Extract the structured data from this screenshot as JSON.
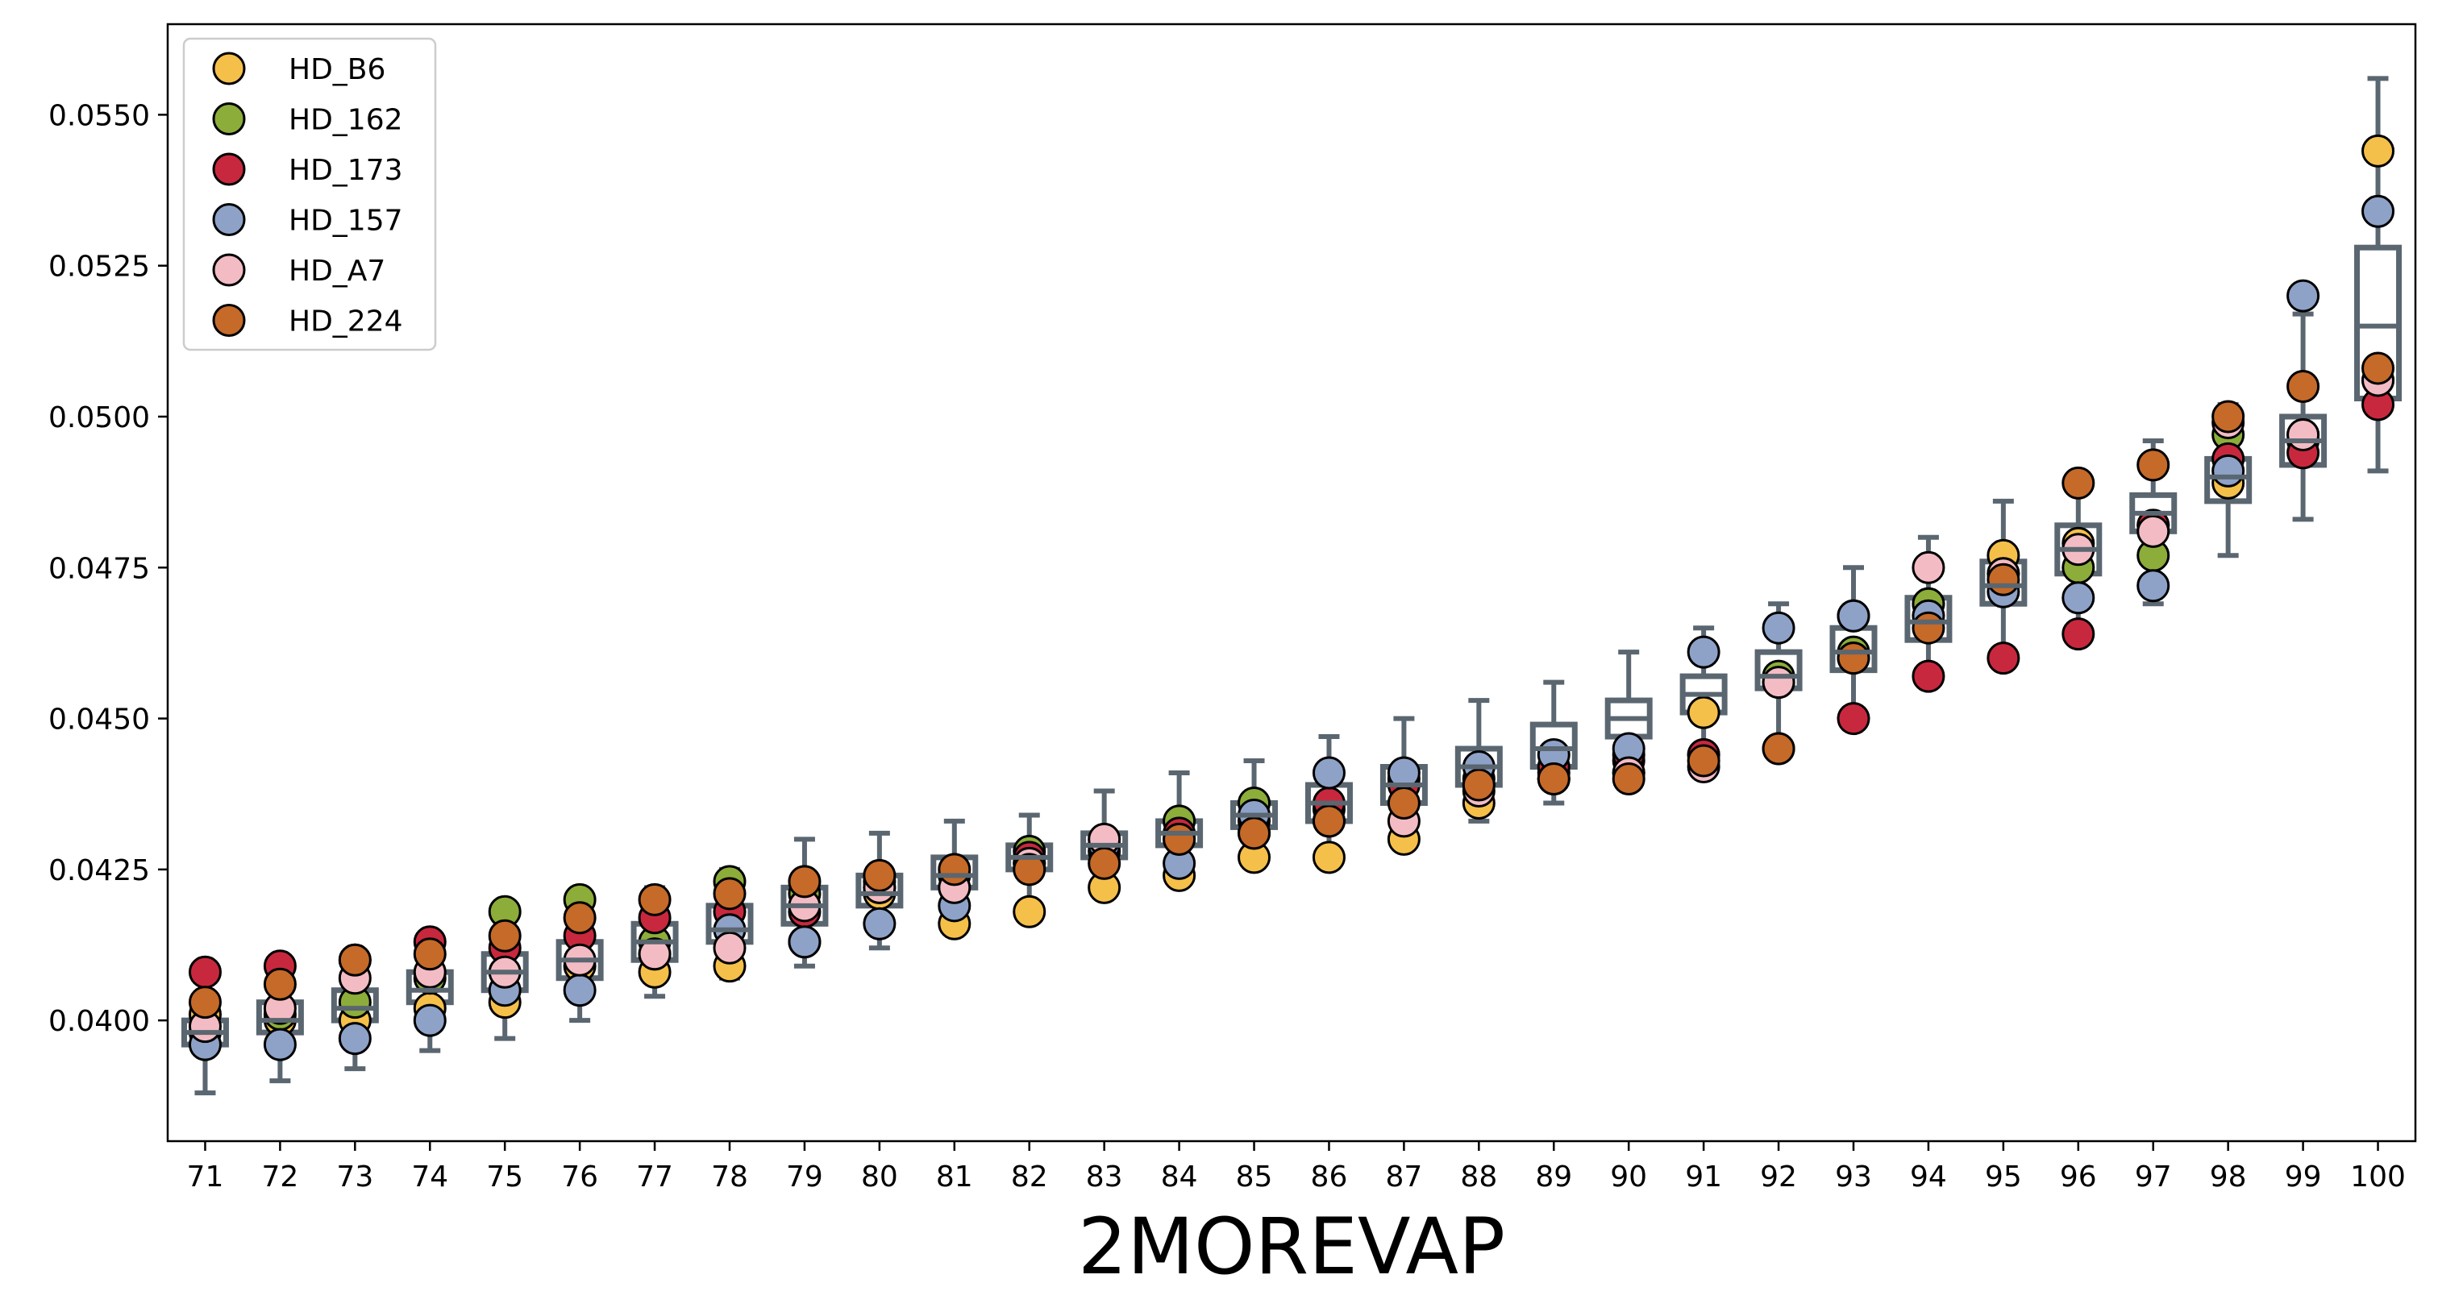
{
  "chart_data": {
    "type": "scatter",
    "overlay": "boxplot",
    "title": "",
    "xlabel": "2MOREVAP",
    "ylabel": "",
    "categories": [
      71,
      72,
      73,
      74,
      75,
      76,
      77,
      78,
      79,
      80,
      81,
      82,
      83,
      84,
      85,
      86,
      87,
      88,
      89,
      90,
      91,
      92,
      93,
      94,
      95,
      96,
      97,
      98,
      99,
      100
    ],
    "ylim": [
      0.038,
      0.0565
    ],
    "yticks": [
      0.04,
      0.0425,
      0.045,
      0.0475,
      0.05,
      0.0525,
      0.055
    ],
    "ytick_labels": [
      "0.0400",
      "0.0425",
      "0.0450",
      "0.0475",
      "0.0500",
      "0.0525",
      "0.0550"
    ],
    "grid": false,
    "legend_position": "top-left",
    "box_color": "#5a6670",
    "series": [
      {
        "name": "HD_B6",
        "color": "#f5c04a",
        "values": [
          0.0401,
          0.04,
          0.04,
          0.0402,
          0.0403,
          0.0409,
          0.0408,
          0.0409,
          0.0413,
          0.0421,
          0.0416,
          0.0418,
          0.0422,
          0.0424,
          0.0427,
          0.0427,
          0.043,
          0.0436,
          0.044,
          0.0441,
          0.0451,
          0.0456,
          0.0467,
          0.0469,
          0.0477,
          0.0479,
          0.0482,
          0.0489,
          0.0496,
          0.0544
        ]
      },
      {
        "name": "HD_162",
        "color": "#8cad3a",
        "values": [
          0.0398,
          0.0401,
          0.0403,
          0.0407,
          0.0418,
          0.042,
          0.0413,
          0.0423,
          0.0421,
          0.0423,
          0.0424,
          0.0428,
          0.0429,
          0.0433,
          0.0436,
          0.0435,
          0.044,
          0.0439,
          0.0441,
          0.0443,
          0.0444,
          0.0457,
          0.0461,
          0.0469,
          0.0474,
          0.0475,
          0.0477,
          0.0497,
          0.0497,
          0.0506
        ]
      },
      {
        "name": "HD_173",
        "color": "#c8283e",
        "values": [
          0.0408,
          0.0409,
          0.041,
          0.0413,
          0.0412,
          0.0414,
          0.0417,
          0.0418,
          0.0418,
          0.0422,
          0.0424,
          0.0427,
          0.0428,
          0.0431,
          0.0433,
          0.0436,
          0.0439,
          0.044,
          0.0442,
          0.0444,
          0.0444,
          0.0445,
          0.045,
          0.0457,
          0.046,
          0.0464,
          0.0482,
          0.0493,
          0.0494,
          0.0502
        ]
      },
      {
        "name": "HD_157",
        "color": "#8ea2c8",
        "values": [
          0.0396,
          0.0396,
          0.0397,
          0.04,
          0.0405,
          0.0405,
          0.0411,
          0.0415,
          0.0413,
          0.0416,
          0.0419,
          0.0426,
          0.0429,
          0.0426,
          0.0434,
          0.0441,
          0.0441,
          0.0442,
          0.0444,
          0.0445,
          0.0461,
          0.0465,
          0.0467,
          0.0467,
          0.0471,
          0.047,
          0.0472,
          0.0491,
          0.052,
          0.0534
        ]
      },
      {
        "name": "HD_A7",
        "color": "#f3bcc4",
        "values": [
          0.0399,
          0.0402,
          0.0407,
          0.0408,
          0.0408,
          0.041,
          0.0411,
          0.0412,
          0.0419,
          0.0422,
          0.0422,
          0.0426,
          0.043,
          0.043,
          0.0431,
          0.0433,
          0.0433,
          0.0438,
          0.044,
          0.0441,
          0.0442,
          0.0456,
          0.046,
          0.0475,
          0.0474,
          0.0478,
          0.0481,
          0.0499,
          0.0497,
          0.0506
        ]
      },
      {
        "name": "HD_224",
        "color": "#c56a29",
        "values": [
          0.0403,
          0.0406,
          0.041,
          0.0411,
          0.0414,
          0.0417,
          0.042,
          0.0421,
          0.0423,
          0.0424,
          0.0425,
          0.0425,
          0.0426,
          0.043,
          0.0431,
          0.0433,
          0.0436,
          0.0439,
          0.044,
          0.044,
          0.0443,
          0.0445,
          0.046,
          0.0465,
          0.0473,
          0.0489,
          0.0492,
          0.05,
          0.0505,
          0.0508
        ]
      }
    ],
    "boxes": [
      {
        "whislo": 0.0388,
        "q1": 0.0396,
        "med": 0.0398,
        "q3": 0.04,
        "whishi": 0.0408
      },
      {
        "whislo": 0.039,
        "q1": 0.0398,
        "med": 0.04,
        "q3": 0.0403,
        "whishi": 0.041
      },
      {
        "whislo": 0.0392,
        "q1": 0.04,
        "med": 0.0402,
        "q3": 0.0405,
        "whishi": 0.0411
      },
      {
        "whislo": 0.0395,
        "q1": 0.0403,
        "med": 0.0405,
        "q3": 0.0408,
        "whishi": 0.0414
      },
      {
        "whislo": 0.0397,
        "q1": 0.0405,
        "med": 0.0408,
        "q3": 0.0411,
        "whishi": 0.0418
      },
      {
        "whislo": 0.04,
        "q1": 0.0407,
        "med": 0.041,
        "q3": 0.0413,
        "whishi": 0.042
      },
      {
        "whislo": 0.0404,
        "q1": 0.041,
        "med": 0.0413,
        "q3": 0.0416,
        "whishi": 0.0422
      },
      {
        "whislo": 0.0407,
        "q1": 0.0413,
        "med": 0.0415,
        "q3": 0.0419,
        "whishi": 0.0425
      },
      {
        "whislo": 0.0409,
        "q1": 0.0416,
        "med": 0.0419,
        "q3": 0.0422,
        "whishi": 0.043
      },
      {
        "whislo": 0.0412,
        "q1": 0.0419,
        "med": 0.0421,
        "q3": 0.0424,
        "whishi": 0.0431
      },
      {
        "whislo": 0.0416,
        "q1": 0.0422,
        "med": 0.0424,
        "q3": 0.0427,
        "whishi": 0.0433
      },
      {
        "whislo": 0.0418,
        "q1": 0.0425,
        "med": 0.0427,
        "q3": 0.0429,
        "whishi": 0.0434
      },
      {
        "whislo": 0.0422,
        "q1": 0.0427,
        "med": 0.0429,
        "q3": 0.0431,
        "whishi": 0.0438
      },
      {
        "whislo": 0.0424,
        "q1": 0.0429,
        "med": 0.0431,
        "q3": 0.0433,
        "whishi": 0.0441
      },
      {
        "whislo": 0.0427,
        "q1": 0.0432,
        "med": 0.0434,
        "q3": 0.0436,
        "whishi": 0.0443
      },
      {
        "whislo": 0.0428,
        "q1": 0.0433,
        "med": 0.0436,
        "q3": 0.0439,
        "whishi": 0.0447
      },
      {
        "whislo": 0.043,
        "q1": 0.0436,
        "med": 0.0439,
        "q3": 0.0442,
        "whishi": 0.045
      },
      {
        "whislo": 0.0433,
        "q1": 0.0439,
        "med": 0.0442,
        "q3": 0.0445,
        "whishi": 0.0453
      },
      {
        "whislo": 0.0436,
        "q1": 0.0442,
        "med": 0.0445,
        "q3": 0.0449,
        "whishi": 0.0456
      },
      {
        "whislo": 0.044,
        "q1": 0.0447,
        "med": 0.045,
        "q3": 0.0453,
        "whishi": 0.0461
      },
      {
        "whislo": 0.0443,
        "q1": 0.0451,
        "med": 0.0454,
        "q3": 0.0457,
        "whishi": 0.0465
      },
      {
        "whislo": 0.0445,
        "q1": 0.0455,
        "med": 0.0457,
        "q3": 0.0461,
        "whishi": 0.0469
      },
      {
        "whislo": 0.045,
        "q1": 0.0458,
        "med": 0.0461,
        "q3": 0.0465,
        "whishi": 0.0475
      },
      {
        "whislo": 0.0457,
        "q1": 0.0463,
        "med": 0.0466,
        "q3": 0.047,
        "whishi": 0.048
      },
      {
        "whislo": 0.046,
        "q1": 0.0469,
        "med": 0.0472,
        "q3": 0.0476,
        "whishi": 0.0486
      },
      {
        "whislo": 0.0464,
        "q1": 0.0474,
        "med": 0.0478,
        "q3": 0.0482,
        "whishi": 0.0489
      },
      {
        "whislo": 0.0469,
        "q1": 0.0481,
        "med": 0.0484,
        "q3": 0.0487,
        "whishi": 0.0496
      },
      {
        "whislo": 0.0477,
        "q1": 0.0486,
        "med": 0.049,
        "q3": 0.0493,
        "whishi": 0.0502
      },
      {
        "whislo": 0.0483,
        "q1": 0.0492,
        "med": 0.0496,
        "q3": 0.05,
        "whishi": 0.0517
      },
      {
        "whislo": 0.0491,
        "q1": 0.0503,
        "med": 0.0515,
        "q3": 0.0528,
        "whishi": 0.0556
      }
    ]
  }
}
